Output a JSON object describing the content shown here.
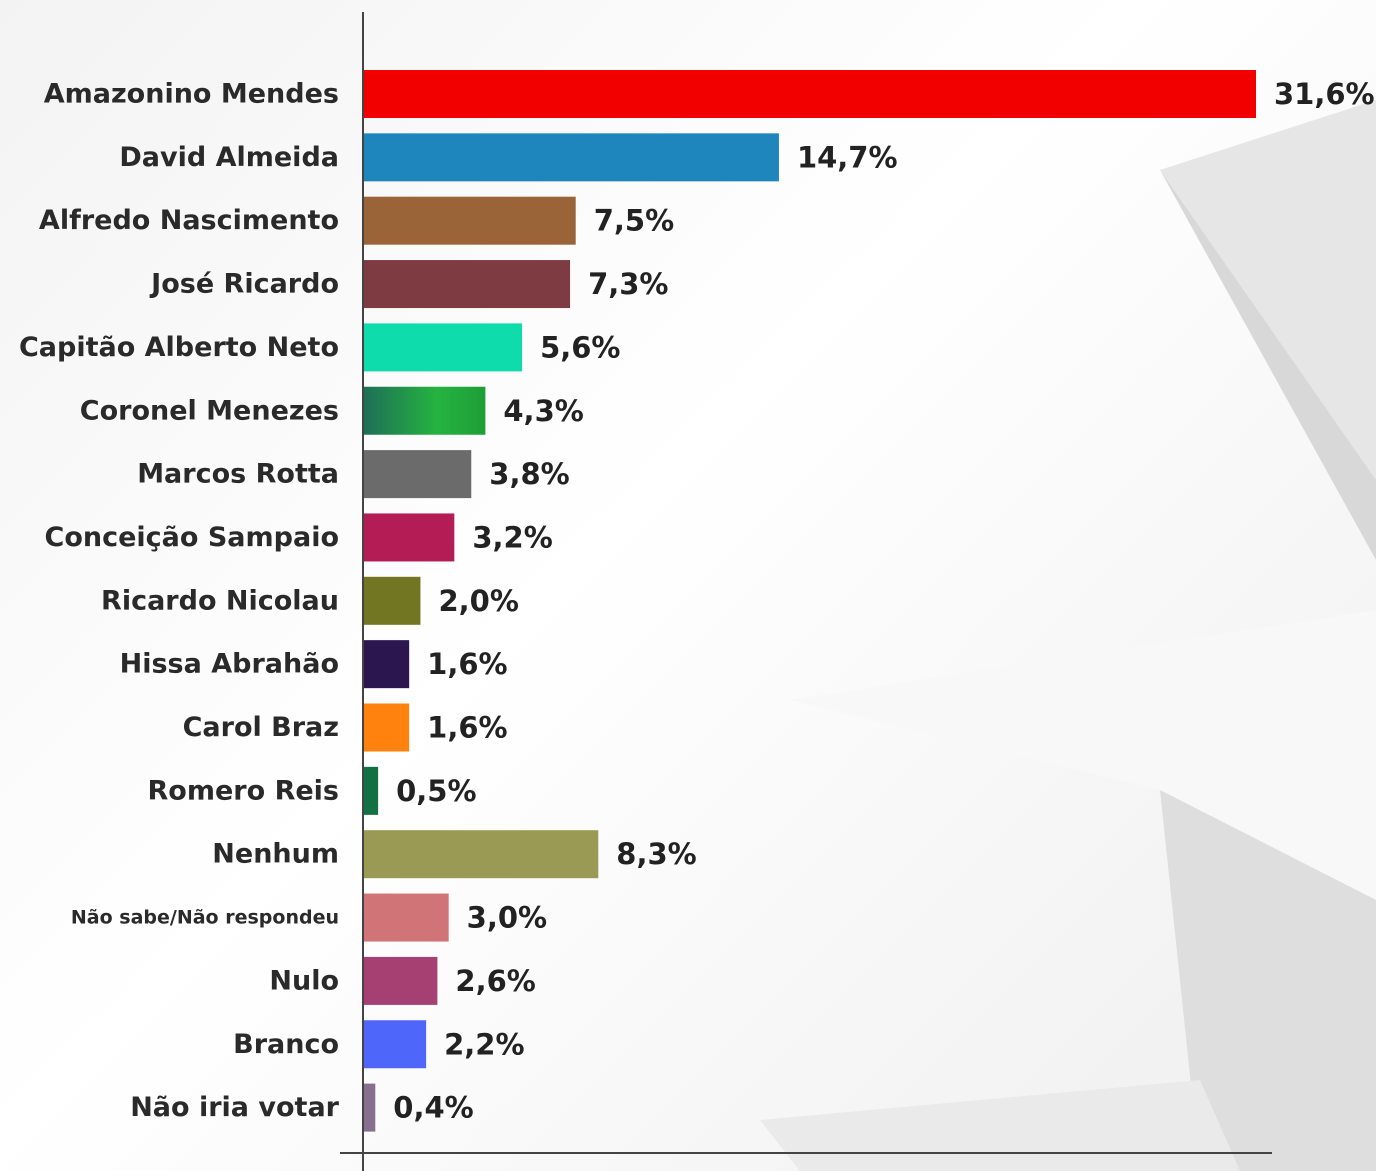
{
  "chart_data": {
    "type": "bar",
    "orientation": "horizontal",
    "title": "",
    "xlabel": "",
    "ylabel": "",
    "grid": false,
    "xlim": [
      0,
      31.6
    ],
    "categories": [
      "Amazonino Mendes",
      "David Almeida",
      "Alfredo Nascimento",
      "José Ricardo",
      "Capitão Alberto Neto",
      "Coronel Menezes",
      "Marcos Rotta",
      "Conceição Sampaio",
      "Ricardo Nicolau",
      "Hissa Abrahão",
      "Carol Braz",
      "Romero Reis",
      "Nenhum",
      "Não sabe/Não respondeu",
      "Nulo",
      "Branco",
      "Não iria votar"
    ],
    "values": [
      31.6,
      14.7,
      7.5,
      7.3,
      5.6,
      4.3,
      3.8,
      3.2,
      2.0,
      1.6,
      1.6,
      0.5,
      8.3,
      3.0,
      2.6,
      2.2,
      0.4
    ],
    "value_labels": [
      "31,6%",
      "14,7%",
      "7,5%",
      "7,3%",
      "5,6%",
      "4,3%",
      "3,8%",
      "3,2%",
      "2,0%",
      "1,6%",
      "1,6%",
      "0,5%",
      "8,3%",
      "3,0%",
      "2,6%",
      "2,2%",
      "0,4%"
    ],
    "colors": [
      "#f20000",
      "#1f86bd",
      "#9b6438",
      "#7e3c42",
      "#0fdcac",
      "#1c9b4e",
      "#6b6b6b",
      "#b31c55",
      "#727622",
      "#2c1650",
      "#ff820e",
      "#127042",
      "#9b9a54",
      "#d17477",
      "#a63f72",
      "#4f66fb",
      "#87708f"
    ]
  }
}
